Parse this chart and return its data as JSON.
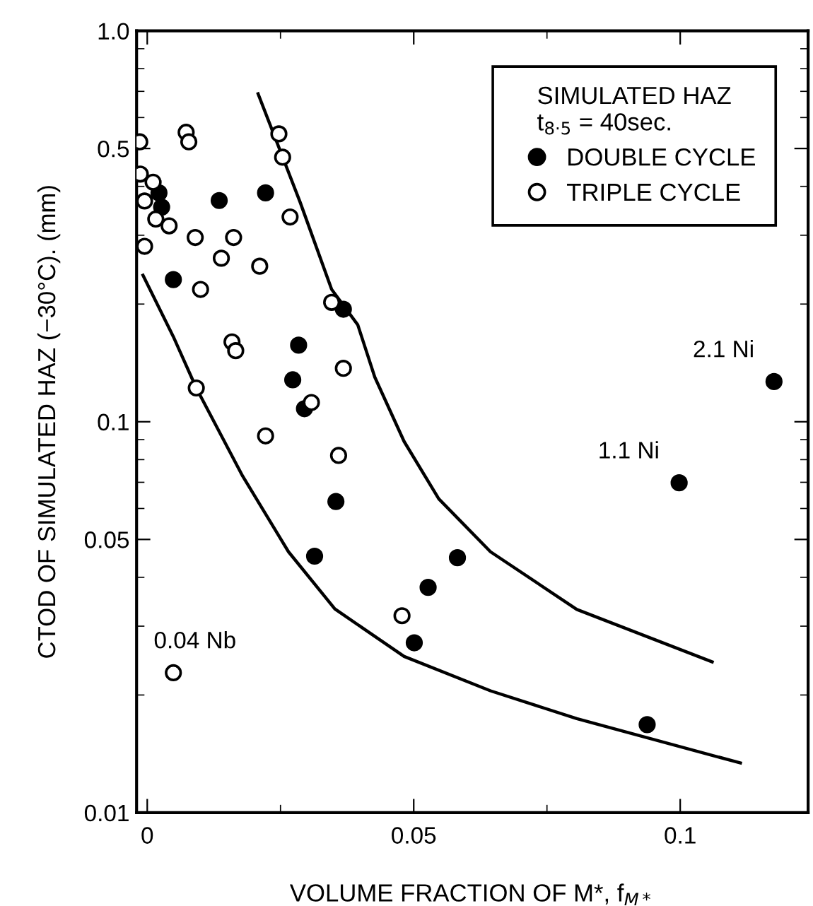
{
  "chart_data": {
    "type": "scatter",
    "xlabel": "VOLUME FRACTION OF M*, f$_{M*}$",
    "ylabel": "CTOD OF SIMULATED HAZ (−30°C). (mm)",
    "legend_title": "SIMULATED HAZ\nt$_{8·5}$ = 40sec.",
    "log": "y",
    "xlim": [
      -0.002,
      0.124
    ],
    "ylim": [
      0.01,
      1.0
    ],
    "xticks": [
      0,
      0.05,
      0.1
    ],
    "yticks": [
      0.01,
      0.05,
      0.1,
      0.5,
      {
        "value": 1.0,
        "label": "1.0"
      }
    ],
    "grid": false,
    "legend": "top right",
    "marker": "circle",
    "series": [
      {
        "name": "DOUBLE CYCLE",
        "color": "#000000",
        "x": [
          0.0022,
          0.0027,
          0.0135,
          0.0222,
          0.0049,
          0.0368,
          0.0284,
          0.0273,
          0.0295,
          0.0354,
          0.0314,
          0.0582,
          0.0527,
          0.0501,
          0.0938,
          0.0998,
          0.1176
        ],
        "values": [
          0.385,
          0.354,
          0.368,
          0.385,
          0.231,
          0.194,
          0.157,
          0.128,
          0.108,
          0.0625,
          0.0453,
          0.0449,
          0.0377,
          0.0272,
          0.0168,
          0.0698,
          0.1267
        ]
      },
      {
        "name": "TRIPLE CYCLE",
        "color": "#ffffff",
        "x": [
          -0.0014,
          0.0073,
          0.0078,
          0.0247,
          0.0254,
          -0.0013,
          0.0011,
          -0.0005,
          0.0016,
          0.0041,
          -0.0005,
          0.009,
          0.0162,
          0.0139,
          0.0211,
          0.0268,
          0.01,
          0.0346,
          0.0159,
          0.0166,
          0.0368,
          0.0092,
          0.0308,
          0.0222,
          0.0359,
          0.0478,
          0.0049
        ],
        "values": [
          0.52,
          0.55,
          0.52,
          0.545,
          0.475,
          0.43,
          0.41,
          0.367,
          0.33,
          0.317,
          0.281,
          0.296,
          0.296,
          0.262,
          0.25,
          0.334,
          0.218,
          0.202,
          0.16,
          0.152,
          0.137,
          0.122,
          0.112,
          0.092,
          0.082,
          0.0319,
          0.0228
        ]
      },
      {
        "type": "line",
        "color": "#000000",
        "marker": "none",
        "x": [
          0.0208,
          0.0287,
          0.0346,
          0.0395,
          0.0427,
          0.0482,
          0.0547,
          0.0644,
          0.0806,
          0.106
        ],
        "values": [
          0.69,
          0.364,
          0.218,
          0.177,
          0.13,
          0.089,
          0.0635,
          0.0465,
          0.0331,
          0.0243
        ]
      },
      {
        "type": "line",
        "color": "#000000",
        "marker": "none",
        "x": [
          -0.0008,
          0.0049,
          0.0092,
          0.0179,
          0.0265,
          0.0352,
          0.0482,
          0.0644,
          0.0806,
          0.1113
        ],
        "values": [
          0.237,
          0.165,
          0.122,
          0.0726,
          0.0465,
          0.0332,
          0.0251,
          0.0205,
          0.0174,
          0.0134
        ]
      }
    ],
    "annotations": [
      {
        "text": "0.04 Nb",
        "x": 0.0049,
        "y": 0.0228
      },
      {
        "text": "1.1 Ni",
        "x": 0.0998,
        "y": 0.0698
      },
      {
        "text": "2.1 Ni",
        "x": 0.1176,
        "y": 0.1267
      }
    ]
  }
}
